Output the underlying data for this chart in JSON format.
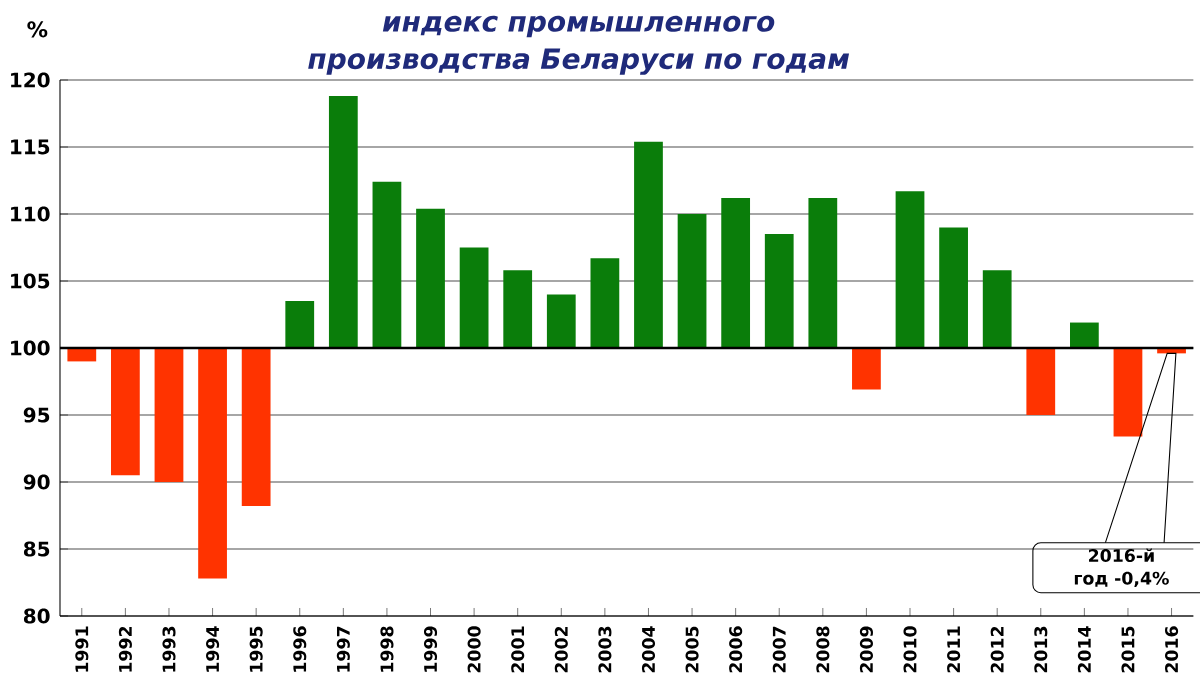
{
  "chart_data": {
    "type": "bar",
    "title": "индекс промышленного производства Беларуси по годам",
    "ylabel": "%",
    "categories": [
      "1991",
      "1992",
      "1993",
      "1994",
      "1995",
      "1996",
      "1997",
      "1998",
      "1999",
      "2000",
      "2001",
      "2002",
      "2003",
      "2004",
      "2005",
      "2006",
      "2007",
      "2008",
      "2009",
      "2010",
      "2011",
      "2012",
      "2013",
      "2014",
      "2015",
      "2016"
    ],
    "base": [
      100,
      100,
      100,
      100,
      100,
      100,
      100,
      100,
      100,
      100,
      100,
      100,
      100,
      100,
      100,
      100,
      100,
      100,
      100,
      100,
      100,
      100,
      100,
      100,
      100,
      100
    ],
    "values": [
      -1.0,
      -9.5,
      -10.0,
      -17.2,
      -11.8,
      3.5,
      18.8,
      12.4,
      10.4,
      7.5,
      5.8,
      4.0,
      6.7,
      15.4,
      10.0,
      11.2,
      8.5,
      11.2,
      -3.1,
      11.7,
      9.0,
      5.8,
      -5.0,
      1.9,
      -6.6,
      -0.4
    ],
    "colors": [
      "#ff3300",
      "#ff3300",
      "#ff3300",
      "#ff3300",
      "#ff3300",
      "#0a7d0a",
      "#0a7d0a",
      "#0a7d0a",
      "#0a7d0a",
      "#0a7d0a",
      "#0a7d0a",
      "#0a7d0a",
      "#0a7d0a",
      "#0a7d0a",
      "#0a7d0a",
      "#0a7d0a",
      "#0a7d0a",
      "#0a7d0a",
      "#ff3300",
      "#0a7d0a",
      "#0a7d0a",
      "#0a7d0a",
      "#ff3300",
      "#0a7d0a",
      "#ff3300",
      "#ff3300"
    ],
    "ylim": [
      80,
      120
    ],
    "yticks": [
      80,
      85,
      90,
      95,
      100,
      105,
      110,
      115,
      120
    ],
    "grid": "y",
    "ref_lines": [
      {
        "axis": "y",
        "value": 100,
        "color": "#000000"
      }
    ],
    "annotations": [
      "2016-й год -0,4%"
    ]
  }
}
